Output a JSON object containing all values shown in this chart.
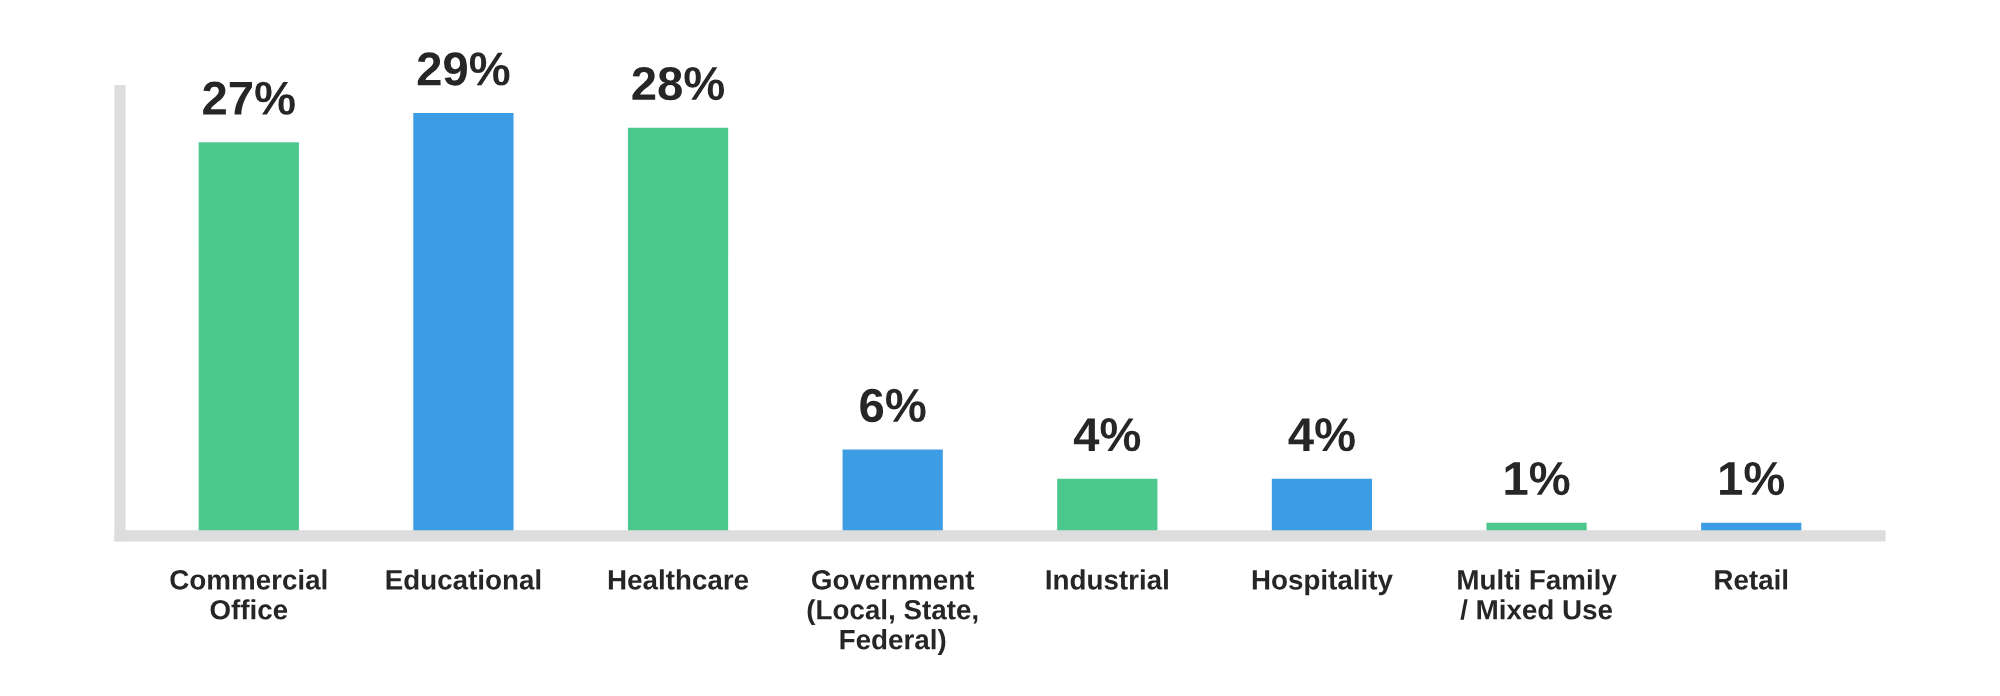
{
  "chart_data": {
    "type": "bar",
    "categories": [
      "Commercial\nOffice",
      "Educational",
      "Healthcare",
      "Government\n(Local, State,\nFederal)",
      "Industrial",
      "Hospitality",
      "Multi Family\n/ Mixed Use",
      "Retail"
    ],
    "values": [
      27,
      29,
      28,
      6,
      4,
      4,
      1,
      1
    ],
    "colors": [
      "#4cc78e",
      "#3c9de4",
      "#4cc78e",
      "#3c9de4",
      "#4cc78e",
      "#3c9de4",
      "#4cc78e",
      "#3c9de4"
    ],
    "value_labels": [
      "27%",
      "29%",
      "28%",
      "6%",
      "4%",
      "4%",
      "1%",
      "1%"
    ],
    "grid": false,
    "legend": false
  }
}
